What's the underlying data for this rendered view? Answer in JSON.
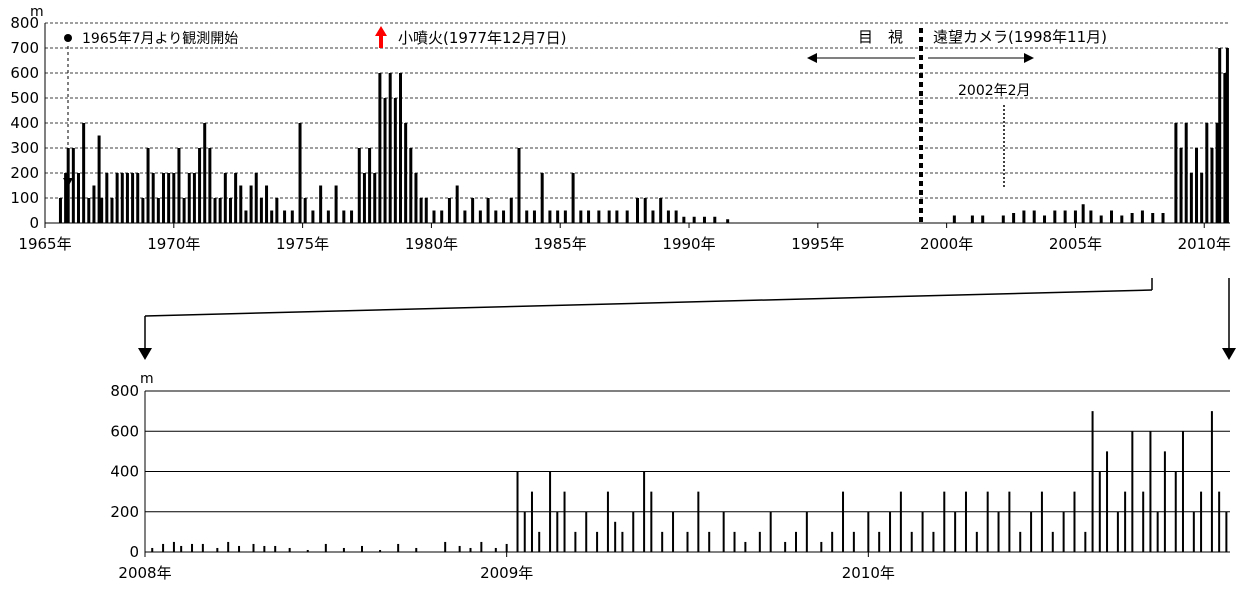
{
  "colors": {
    "bar": "#000000",
    "eruption_arrow": "#ff0000",
    "grid": "#000000"
  },
  "chart_data": [
    {
      "type": "bar",
      "unit_label": "m",
      "ylim": [
        0,
        800
      ],
      "yticks": [
        0,
        100,
        200,
        300,
        400,
        500,
        600,
        700,
        800
      ],
      "grid": "dashed",
      "xlim": [
        1965,
        2011
      ],
      "xticks": [
        {
          "year": 1965,
          "label": "1965年"
        },
        {
          "year": 1970,
          "label": "1970年"
        },
        {
          "year": 1975,
          "label": "1975年"
        },
        {
          "year": 1980,
          "label": "1980年"
        },
        {
          "year": 1985,
          "label": "1985年"
        },
        {
          "year": 1990,
          "label": "1990年"
        },
        {
          "year": 1995,
          "label": "1995年"
        },
        {
          "year": 2000,
          "label": "2000年"
        },
        {
          "year": 2005,
          "label": "2005年"
        },
        {
          "year": 2010,
          "label": "2010年"
        }
      ],
      "values": [
        [
          1965.6,
          100
        ],
        [
          1965.8,
          200
        ],
        [
          1965.9,
          300
        ],
        [
          1966.1,
          300
        ],
        [
          1966.3,
          200
        ],
        [
          1966.5,
          400
        ],
        [
          1966.7,
          100
        ],
        [
          1966.9,
          150
        ],
        [
          1967.1,
          350
        ],
        [
          1967.2,
          100
        ],
        [
          1967.4,
          200
        ],
        [
          1967.6,
          100
        ],
        [
          1967.8,
          200
        ],
        [
          1968.0,
          200
        ],
        [
          1968.2,
          200
        ],
        [
          1968.4,
          200
        ],
        [
          1968.6,
          200
        ],
        [
          1968.8,
          100
        ],
        [
          1969.0,
          300
        ],
        [
          1969.2,
          200
        ],
        [
          1969.4,
          100
        ],
        [
          1969.6,
          200
        ],
        [
          1969.8,
          200
        ],
        [
          1970.0,
          200
        ],
        [
          1970.2,
          300
        ],
        [
          1970.4,
          100
        ],
        [
          1970.6,
          200
        ],
        [
          1970.8,
          200
        ],
        [
          1971.0,
          300
        ],
        [
          1971.2,
          400
        ],
        [
          1971.4,
          300
        ],
        [
          1971.6,
          100
        ],
        [
          1971.8,
          100
        ],
        [
          1972.0,
          200
        ],
        [
          1972.2,
          100
        ],
        [
          1972.4,
          200
        ],
        [
          1972.6,
          150
        ],
        [
          1972.8,
          50
        ],
        [
          1973.0,
          150
        ],
        [
          1973.2,
          200
        ],
        [
          1973.4,
          100
        ],
        [
          1973.6,
          150
        ],
        [
          1973.8,
          50
        ],
        [
          1974.0,
          100
        ],
        [
          1974.3,
          50
        ],
        [
          1974.6,
          50
        ],
        [
          1974.9,
          400
        ],
        [
          1975.1,
          100
        ],
        [
          1975.4,
          50
        ],
        [
          1975.7,
          150
        ],
        [
          1976.0,
          50
        ],
        [
          1976.3,
          150
        ],
        [
          1976.6,
          50
        ],
        [
          1976.9,
          50
        ],
        [
          1977.2,
          300
        ],
        [
          1977.4,
          200
        ],
        [
          1977.6,
          300
        ],
        [
          1977.8,
          200
        ],
        [
          1978.0,
          600
        ],
        [
          1978.2,
          500
        ],
        [
          1978.4,
          600
        ],
        [
          1978.6,
          500
        ],
        [
          1978.8,
          600
        ],
        [
          1979.0,
          400
        ],
        [
          1979.2,
          300
        ],
        [
          1979.4,
          200
        ],
        [
          1979.6,
          100
        ],
        [
          1979.8,
          100
        ],
        [
          1980.1,
          50
        ],
        [
          1980.4,
          50
        ],
        [
          1980.7,
          100
        ],
        [
          1981.0,
          150
        ],
        [
          1981.3,
          50
        ],
        [
          1981.6,
          100
        ],
        [
          1981.9,
          50
        ],
        [
          1982.2,
          100
        ],
        [
          1982.5,
          50
        ],
        [
          1982.8,
          50
        ],
        [
          1983.1,
          100
        ],
        [
          1983.4,
          300
        ],
        [
          1983.7,
          50
        ],
        [
          1984.0,
          50
        ],
        [
          1984.3,
          200
        ],
        [
          1984.6,
          50
        ],
        [
          1984.9,
          50
        ],
        [
          1985.2,
          50
        ],
        [
          1985.5,
          200
        ],
        [
          1985.8,
          50
        ],
        [
          1986.1,
          50
        ],
        [
          1986.5,
          50
        ],
        [
          1986.9,
          50
        ],
        [
          1987.2,
          50
        ],
        [
          1987.6,
          50
        ],
        [
          1988.0,
          100
        ],
        [
          1988.3,
          100
        ],
        [
          1988.6,
          50
        ],
        [
          1988.9,
          100
        ],
        [
          1989.2,
          50
        ],
        [
          1989.5,
          50
        ],
        [
          1989.8,
          25
        ],
        [
          1990.2,
          25
        ],
        [
          1990.6,
          25
        ],
        [
          1991.0,
          25
        ],
        [
          1991.5,
          15
        ],
        [
          2000.3,
          30
        ],
        [
          2001.0,
          30
        ],
        [
          2001.4,
          30
        ],
        [
          2002.2,
          30
        ],
        [
          2002.6,
          40
        ],
        [
          2003.0,
          50
        ],
        [
          2003.4,
          50
        ],
        [
          2003.8,
          30
        ],
        [
          2004.2,
          50
        ],
        [
          2004.6,
          50
        ],
        [
          2005.0,
          50
        ],
        [
          2005.3,
          75
        ],
        [
          2005.6,
          50
        ],
        [
          2006.0,
          30
        ],
        [
          2006.4,
          50
        ],
        [
          2006.8,
          30
        ],
        [
          2007.2,
          40
        ],
        [
          2007.6,
          50
        ],
        [
          2008.0,
          40
        ],
        [
          2008.4,
          40
        ],
        [
          2008.9,
          400
        ],
        [
          2009.1,
          300
        ],
        [
          2009.3,
          400
        ],
        [
          2009.5,
          200
        ],
        [
          2009.7,
          300
        ],
        [
          2009.9,
          200
        ],
        [
          2010.1,
          400
        ],
        [
          2010.3,
          300
        ],
        [
          2010.5,
          400
        ],
        [
          2010.6,
          700
        ],
        [
          2010.8,
          600
        ],
        [
          2010.9,
          700
        ]
      ],
      "annotations": {
        "obs_start": "1965年7月より観測開始",
        "eruption": "小噴火(1977年12月7日)",
        "visual_label": "目　視",
        "camera_label": "遠望カメラ(1998年11月)",
        "feb2002": "2002年2月"
      },
      "annotation_years": {
        "obs_start": 1965.5,
        "eruption": 1977.95,
        "camera_start": 1998.85,
        "feb2002": 2002.1
      }
    },
    {
      "type": "bar",
      "unit_label": "m",
      "ylim": [
        0,
        800
      ],
      "yticks": [
        0,
        200,
        400,
        600,
        800
      ],
      "grid": "solid",
      "xlim": [
        2008.0,
        2011.0
      ],
      "xticks": [
        {
          "year": 2008,
          "label": "2008年"
        },
        {
          "year": 2009,
          "label": "2009年"
        },
        {
          "year": 2010,
          "label": "2010年"
        }
      ],
      "values": [
        [
          2008.02,
          20
        ],
        [
          2008.05,
          40
        ],
        [
          2008.08,
          50
        ],
        [
          2008.1,
          30
        ],
        [
          2008.13,
          40
        ],
        [
          2008.16,
          40
        ],
        [
          2008.2,
          20
        ],
        [
          2008.23,
          50
        ],
        [
          2008.26,
          30
        ],
        [
          2008.3,
          40
        ],
        [
          2008.33,
          30
        ],
        [
          2008.36,
          30
        ],
        [
          2008.4,
          20
        ],
        [
          2008.45,
          10
        ],
        [
          2008.5,
          40
        ],
        [
          2008.55,
          20
        ],
        [
          2008.6,
          30
        ],
        [
          2008.65,
          10
        ],
        [
          2008.7,
          40
        ],
        [
          2008.75,
          20
        ],
        [
          2008.83,
          50
        ],
        [
          2008.87,
          30
        ],
        [
          2008.9,
          20
        ],
        [
          2008.93,
          50
        ],
        [
          2008.97,
          20
        ],
        [
          2009.0,
          40
        ],
        [
          2009.03,
          400
        ],
        [
          2009.05,
          200
        ],
        [
          2009.07,
          300
        ],
        [
          2009.09,
          100
        ],
        [
          2009.12,
          400
        ],
        [
          2009.14,
          200
        ],
        [
          2009.16,
          300
        ],
        [
          2009.19,
          100
        ],
        [
          2009.22,
          200
        ],
        [
          2009.25,
          100
        ],
        [
          2009.28,
          300
        ],
        [
          2009.3,
          150
        ],
        [
          2009.32,
          100
        ],
        [
          2009.35,
          200
        ],
        [
          2009.38,
          400
        ],
        [
          2009.4,
          300
        ],
        [
          2009.43,
          100
        ],
        [
          2009.46,
          200
        ],
        [
          2009.5,
          100
        ],
        [
          2009.53,
          300
        ],
        [
          2009.56,
          100
        ],
        [
          2009.6,
          200
        ],
        [
          2009.63,
          100
        ],
        [
          2009.66,
          50
        ],
        [
          2009.7,
          100
        ],
        [
          2009.73,
          200
        ],
        [
          2009.77,
          50
        ],
        [
          2009.8,
          100
        ],
        [
          2009.83,
          200
        ],
        [
          2009.87,
          50
        ],
        [
          2009.9,
          100
        ],
        [
          2009.93,
          300
        ],
        [
          2009.96,
          100
        ],
        [
          2010.0,
          200
        ],
        [
          2010.03,
          100
        ],
        [
          2010.06,
          200
        ],
        [
          2010.09,
          300
        ],
        [
          2010.12,
          100
        ],
        [
          2010.15,
          200
        ],
        [
          2010.18,
          100
        ],
        [
          2010.21,
          300
        ],
        [
          2010.24,
          200
        ],
        [
          2010.27,
          300
        ],
        [
          2010.3,
          100
        ],
        [
          2010.33,
          300
        ],
        [
          2010.36,
          200
        ],
        [
          2010.39,
          300
        ],
        [
          2010.42,
          100
        ],
        [
          2010.45,
          200
        ],
        [
          2010.48,
          300
        ],
        [
          2010.51,
          100
        ],
        [
          2010.54,
          200
        ],
        [
          2010.57,
          300
        ],
        [
          2010.6,
          100
        ],
        [
          2010.62,
          700
        ],
        [
          2010.64,
          400
        ],
        [
          2010.66,
          500
        ],
        [
          2010.69,
          200
        ],
        [
          2010.71,
          300
        ],
        [
          2010.73,
          600
        ],
        [
          2010.76,
          300
        ],
        [
          2010.78,
          600
        ],
        [
          2010.8,
          200
        ],
        [
          2010.82,
          500
        ],
        [
          2010.85,
          400
        ],
        [
          2010.87,
          600
        ],
        [
          2010.9,
          200
        ],
        [
          2010.92,
          300
        ],
        [
          2010.95,
          700
        ],
        [
          2010.97,
          300
        ],
        [
          2010.99,
          200
        ]
      ]
    }
  ]
}
